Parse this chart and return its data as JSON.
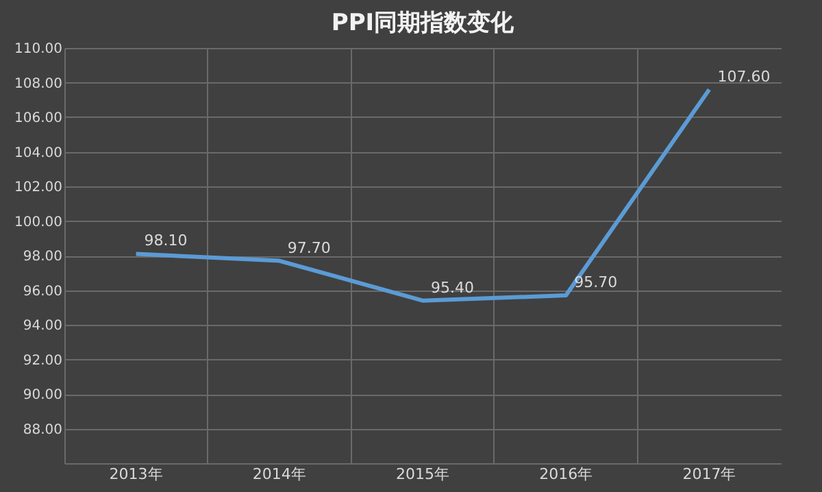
{
  "chart_data": {
    "type": "line",
    "title": "PPI同期指数变化",
    "categories": [
      "2013年",
      "2014年",
      "2015年",
      "2016年",
      "2017年"
    ],
    "series": [
      {
        "color": "#5b9bd5",
        "values": [
          98.1,
          97.7,
          95.4,
          95.7,
          107.6
        ],
        "value_labels": [
          "98.10",
          "97.70",
          "95.40",
          "95.70",
          "107.60"
        ]
      }
    ],
    "ylim": [
      86,
      110
    ],
    "yticks": [
      {
        "value": 86,
        "label": null
      },
      {
        "value": 88,
        "label": "88.00"
      },
      {
        "value": 90,
        "label": "90.00"
      },
      {
        "value": 92,
        "label": "92.00"
      },
      {
        "value": 94,
        "label": "94.00"
      },
      {
        "value": 96,
        "label": "96.00"
      },
      {
        "value": 98,
        "label": "98.00"
      },
      {
        "value": 100,
        "label": "100.00"
      },
      {
        "value": 102,
        "label": "102.00"
      },
      {
        "value": 104,
        "label": "104.00"
      },
      {
        "value": 106,
        "label": "106.00"
      },
      {
        "value": 108,
        "label": "108.00"
      },
      {
        "value": 110,
        "label": "110.00"
      }
    ],
    "grid": true,
    "marker": "none",
    "line_style": "solid",
    "legend": false
  }
}
